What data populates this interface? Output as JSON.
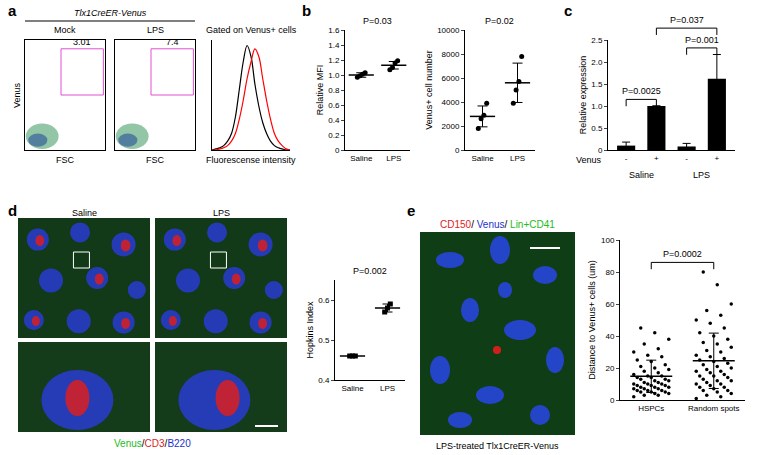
{
  "panel_labels": [
    "a",
    "b",
    "c",
    "d",
    "e"
  ],
  "chart_data": [
    {
      "type": "flow",
      "header": "Tlx1CreER-Venus",
      "title": "Mock",
      "x_label": "FSC",
      "y_label": "Venus",
      "xlim": [
        0,
        100
      ],
      "ylim": [
        0,
        100
      ],
      "tick_labels": false,
      "gate": {
        "x": [
          45,
          98
        ],
        "y": [
          50,
          92
        ]
      },
      "gate_label": "3.01"
    },
    {
      "type": "flow",
      "title": "LPS",
      "x_label": "FSC",
      "xlim": [
        0,
        100
      ],
      "ylim": [
        0,
        100
      ],
      "tick_labels": false,
      "gate": {
        "x": [
          45,
          98
        ],
        "y": [
          50,
          92
        ]
      },
      "gate_label": "7.4"
    },
    {
      "type": "line",
      "title": "Gated on Venus+ cells",
      "x_label": "Fluorescense intensity",
      "x": [
        0,
        1,
        2,
        3,
        4,
        5,
        6,
        7,
        8,
        9,
        10,
        11,
        12,
        13,
        14,
        15,
        16,
        17,
        18,
        19,
        20
      ],
      "xlim": [
        0,
        20
      ],
      "ylim": [
        0,
        100
      ],
      "tick_labels": false,
      "series": [
        {
          "color": "black",
          "values": [
            0,
            1,
            2,
            4,
            8,
            15,
            30,
            55,
            80,
            95,
            85,
            60,
            40,
            25,
            15,
            8,
            4,
            2,
            1,
            0,
            0
          ]
        },
        {
          "color": "red",
          "values": [
            0,
            0,
            1,
            2,
            4,
            8,
            15,
            28,
            45,
            65,
            80,
            92,
            85,
            65,
            45,
            28,
            15,
            8,
            4,
            1,
            0
          ]
        }
      ]
    },
    {
      "type": "dot",
      "y_label": "Relative MFI",
      "categories": [
        "Saline",
        "LPS"
      ],
      "values": [
        [
          0.97,
          0.99,
          1.01,
          1.03
        ],
        [
          1.07,
          1.1,
          1.16,
          1.19
        ]
      ],
      "mean": [
        1.0,
        1.13
      ],
      "error": [
        0.03,
        0.05
      ],
      "ylim": [
        0,
        1.6
      ],
      "yticks": [
        0,
        0.2,
        0.4,
        0.6,
        0.8,
        {
          "value": 1,
          "label": "1.0"
        },
        1.2,
        1.4,
        1.6
      ],
      "annotation": "P=0.03",
      "marker": "circle",
      "color": "black"
    },
    {
      "type": "dot",
      "y_label": "Venus+ cell number",
      "categories": [
        "Saline",
        "LPS"
      ],
      "values": [
        [
          1800,
          2600,
          2900,
          3900
        ],
        [
          3900,
          5000,
          5700,
          7800
        ]
      ],
      "mean": [
        2800,
        5600
      ],
      "error": [
        870,
        1640
      ],
      "ylim": [
        0,
        10000
      ],
      "yticks": [
        0,
        2000,
        4000,
        6000,
        8000,
        10000
      ],
      "annotation": "P=0.02",
      "marker": "circle",
      "color": "black"
    },
    {
      "type": "bar",
      "x_label": "Venus",
      "y_label": "Relative expression",
      "categories": [
        "-",
        "+",
        "-",
        "+"
      ],
      "groups": [
        {
          "label": "Saline",
          "from": 0,
          "to": 1
        },
        {
          "label": "LPS",
          "from": 2,
          "to": 3
        }
      ],
      "values": [
        0.1,
        1.0,
        0.08,
        1.62
      ],
      "error": [
        0.08,
        0,
        0.07,
        0.55
      ],
      "color": "black",
      "ylim": [
        0,
        2.5
      ],
      "yticks": [
        0,
        0.5,
        {
          "value": 1,
          "label": "1.0"
        },
        1.5,
        {
          "value": 2,
          "label": "2.0"
        },
        2.5
      ],
      "comparisons": [
        {
          "from": 0,
          "to": 1,
          "label": "P=0.0025"
        },
        {
          "from": 2,
          "to": 3,
          "label": "P=0.001"
        },
        {
          "from": 1,
          "to": 3,
          "label": "P=0.037"
        }
      ]
    },
    {
      "type": "dot",
      "y_label": "Hopkins Index",
      "categories": [
        "Saline",
        "LPS"
      ],
      "values": [
        [
          0.46,
          0.46,
          0.46
        ],
        [
          0.57,
          0.58,
          0.59
        ]
      ],
      "mean": [
        0.46,
        0.58
      ],
      "error": [
        0.002,
        0.01
      ],
      "ylim": [
        0.4,
        0.65
      ],
      "yticks": [
        0.4,
        0.5,
        0.6
      ],
      "annotation": "P=0.002",
      "marker": "square",
      "color": "black"
    },
    {
      "type": "dot",
      "y_label": "Distance to Venus+ cells (um)",
      "categories": [
        "HSPCs",
        "Random spots"
      ],
      "values": [
        [
          2,
          3,
          3,
          4,
          4,
          5,
          5,
          5,
          6,
          6,
          6,
          7,
          7,
          7,
          8,
          8,
          8,
          9,
          9,
          9,
          10,
          10,
          10,
          11,
          11,
          12,
          12,
          13,
          13,
          14,
          14,
          15,
          15,
          16,
          17,
          18,
          19,
          20,
          21,
          22,
          24,
          25,
          27,
          28,
          30,
          32,
          35,
          38,
          42,
          45
        ],
        [
          1,
          2,
          3,
          4,
          5,
          6,
          6,
          7,
          8,
          8,
          9,
          10,
          10,
          11,
          12,
          12,
          13,
          14,
          15,
          15,
          16,
          17,
          18,
          18,
          19,
          20,
          21,
          22,
          23,
          24,
          25,
          26,
          27,
          28,
          30,
          31,
          33,
          35,
          36,
          38,
          40,
          42,
          45,
          48,
          50,
          53,
          56,
          60,
          72,
          80
        ]
      ],
      "mean": [
        14.8,
        24.5
      ],
      "error": [
        10.1,
        17.3
      ],
      "ylim": [
        0,
        100
      ],
      "yticks": [
        0,
        20,
        40,
        60,
        80,
        100
      ],
      "comparisons": [
        {
          "from": 0,
          "to": 1,
          "label": "P=0.0002"
        }
      ],
      "marker": "circle",
      "color": "black"
    }
  ],
  "images": [
    {
      "panel": "d",
      "titles": [
        "Saline",
        "LPS"
      ],
      "legend": {
        "separator": "/",
        "items": [
          {
            "text": "Venus",
            "color": "#22bb22"
          },
          {
            "text": "CD3",
            "color": "#dd2222"
          },
          {
            "text": "B220",
            "color": "#2233cc"
          }
        ]
      }
    },
    {
      "panel": "e",
      "caption": "LPS-treated Tlx1CreER-Venus",
      "legend": {
        "separator": "/ ",
        "items": [
          {
            "text": "CD150",
            "color": "#dd2222"
          },
          {
            "text": "Venus",
            "color": "#2233cc"
          },
          {
            "text": "Lin+CD41",
            "color": "#22bb22"
          }
        ]
      }
    }
  ]
}
